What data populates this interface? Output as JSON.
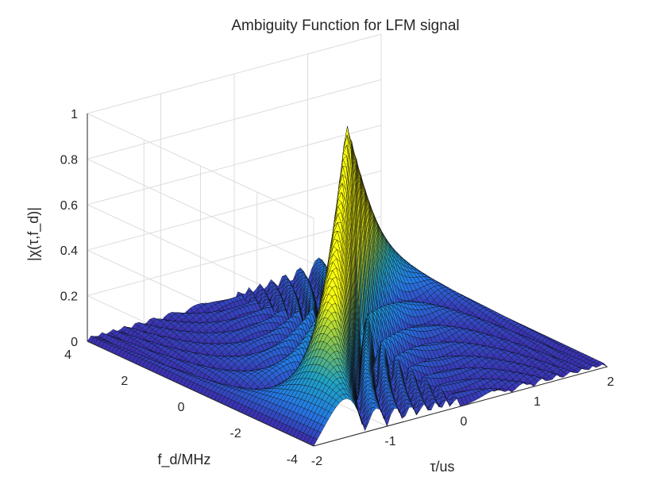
{
  "chart_data": {
    "type": "surface",
    "title": "Ambiguity Function for LFM signal",
    "xlabel": "τ/us",
    "ylabel": "f_d/MHz",
    "zlabel": "|χ(τ,f_d)|",
    "xlim": [
      -2,
      2
    ],
    "ylim": [
      -4,
      4
    ],
    "zlim": [
      0,
      1
    ],
    "x_ticks": [
      -2,
      -1,
      0,
      1,
      2
    ],
    "y_ticks": [
      -4,
      -2,
      0,
      2,
      4
    ],
    "z_ticks": [
      0,
      0.2,
      0.4,
      0.6,
      0.8,
      1
    ],
    "x_tick_labels": [
      "-2",
      "-1",
      "0",
      "1",
      "2"
    ],
    "y_tick_labels": [
      "-4",
      "-2",
      "0",
      "2",
      "4"
    ],
    "z_tick_labels": [
      "0",
      "0.2",
      "0.4",
      "0.6",
      "0.8",
      "1"
    ],
    "peak": {
      "tau": 0,
      "fd": 0,
      "value": 1
    },
    "ridge": {
      "description": "diagonal ridge along fd proportional to tau",
      "from": [
        -2,
        -4
      ],
      "to": [
        2,
        4
      ]
    },
    "grid": true,
    "colormap": "parula",
    "colors": {
      "low": "#3e26a8",
      "mid": "#1fa3c5",
      "high": "#f9fb0e"
    }
  }
}
